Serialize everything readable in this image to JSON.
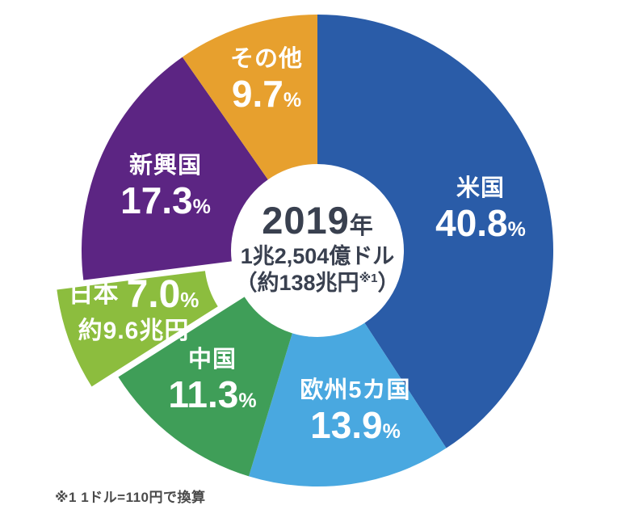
{
  "chart_data": {
    "type": "pie",
    "variant": "donut",
    "title": "",
    "percent_sign": "%",
    "categories": [
      "米国",
      "欧州5カ国",
      "中国",
      "日本",
      "新興国",
      "その他"
    ],
    "values": [
      40.8,
      13.9,
      11.3,
      7.0,
      17.3,
      9.7
    ],
    "slices": [
      {
        "key": "us",
        "label": "米国",
        "percent": 40.8,
        "percent_text": "40.8",
        "color": "#2a5ca8",
        "exploded": false
      },
      {
        "key": "europe",
        "label": "欧州5カ国",
        "percent": 13.9,
        "percent_text": "13.9",
        "color": "#49a8e0",
        "exploded": false
      },
      {
        "key": "china",
        "label": "中国",
        "percent": 11.3,
        "percent_text": "11.3",
        "color": "#3f9e58",
        "exploded": false
      },
      {
        "key": "japan",
        "label": "日本",
        "percent": 7.0,
        "percent_text": "7.0",
        "color": "#8cbd3e",
        "exploded": true,
        "sub_label": "約9.6兆円"
      },
      {
        "key": "emerging",
        "label": "新興国",
        "percent": 17.3,
        "percent_text": "17.3",
        "color": "#5c2583",
        "exploded": false
      },
      {
        "key": "others",
        "label": "その他",
        "percent": 9.7,
        "percent_text": "9.7",
        "color": "#e7a02e",
        "exploded": false
      }
    ],
    "center": {
      "year": "2019",
      "year_suffix": "年",
      "total_usd": "1兆2,504億ドル",
      "total_jpy_pre": "（約138兆円",
      "footnote_ref": "※1",
      "total_jpy_post": "）"
    },
    "footnote": "※1 1ドル=110円で換算",
    "layout_hints": {
      "start_angle_deg_clockwise_from_top": 0,
      "direction": "clockwise",
      "legend": "none",
      "labels": "inside-slices"
    }
  }
}
